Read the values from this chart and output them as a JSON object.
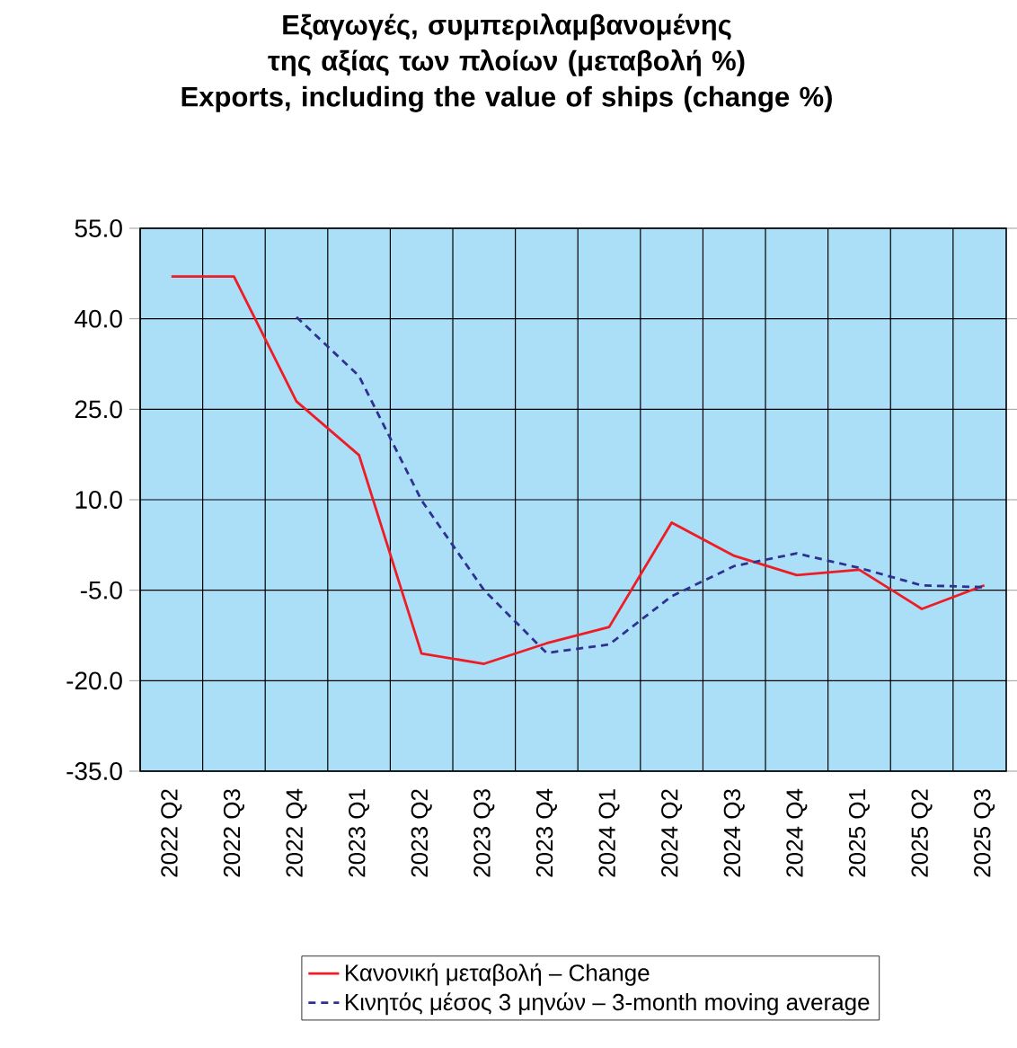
{
  "chart_data": {
    "type": "line",
    "title": "Εξαγωγές, συμπεριλαμβανομένης της αξίας των πλοίων (μεταβολή %)",
    "subtitle": "Exports, including the value of ships (change %)",
    "categories": [
      "2022 Q2",
      "2022 Q3",
      "2022 Q4",
      "2023 Q1",
      "2023 Q2",
      "2023 Q3",
      "2023 Q4",
      "2024 Q1",
      "2024 Q2",
      "2024 Q3",
      "2024 Q4",
      "2025 Q1",
      "2025 Q2",
      "2025 Q3"
    ],
    "series": [
      {
        "name": "Κανονική μεταβολή – Change",
        "color": "#ee1c25",
        "line_style": "solid",
        "values": [
          47,
          47,
          26.3,
          17.4,
          -15.5,
          -17.2,
          -13.8,
          -11.1,
          6.2,
          0.7,
          -2.5,
          -1.6,
          -8.1,
          -4.2
        ]
      },
      {
        "name": "Κινητός μέσος 3 μηνών – 3-month moving average",
        "color": "#2e3192",
        "line_style": "dashed",
        "values": [
          null,
          null,
          40.3,
          30.5,
          9.9,
          -5,
          -15.4,
          -14,
          -6,
          -1,
          1.1,
          -1.3,
          -4.2,
          -4.5
        ]
      }
    ],
    "ylim": [
      -35,
      55
    ],
    "yticks": [
      {
        "value": -35,
        "label": "-35.0"
      },
      {
        "value": -20,
        "label": "-20.0"
      },
      {
        "value": -5,
        "label": "-5.0"
      },
      {
        "value": 10,
        "label": "10.0"
      },
      {
        "value": 25,
        "label": "25.0"
      },
      {
        "value": 40,
        "label": "40.0"
      },
      {
        "value": 55,
        "label": "55.0"
      }
    ],
    "grid": true,
    "legend": "bottom",
    "marker": "none"
  }
}
